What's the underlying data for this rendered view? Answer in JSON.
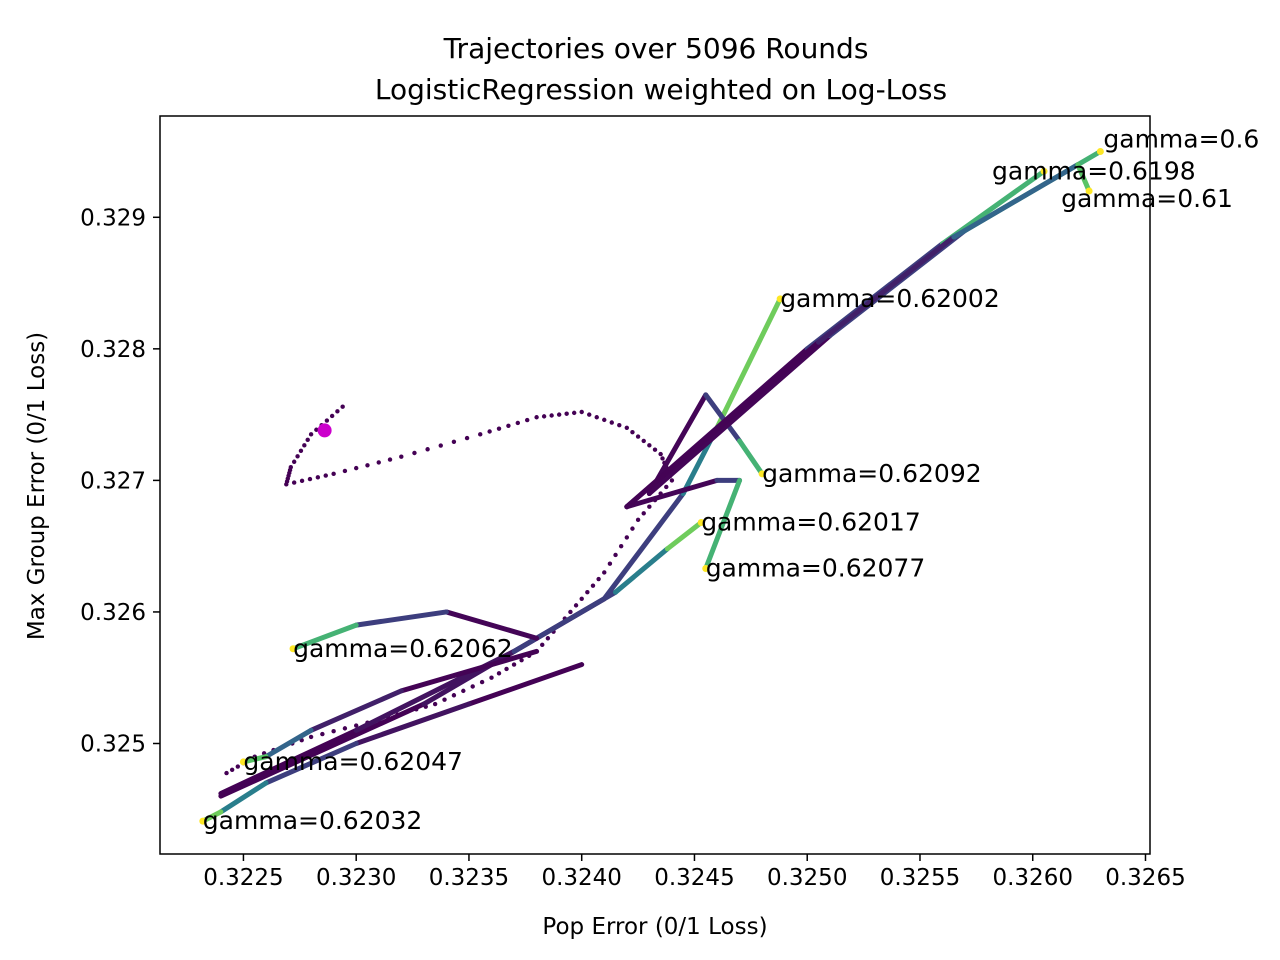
{
  "chart_data": {
    "type": "line",
    "title": "Trajectories over 5096 Rounds",
    "subtitle": "LogisticRegression weighted on Log-Loss",
    "xlabel": "Pop Error (0/1 Loss)",
    "ylabel": "Max Group Error (0/1 Loss)",
    "xlim": [
      0.32213,
      0.32652
    ],
    "ylim": [
      0.32416,
      0.32977
    ],
    "x_ticks": [
      0.3225,
      0.323,
      0.3235,
      0.324,
      0.3245,
      0.325,
      0.3255,
      0.326,
      0.3265
    ],
    "x_tick_labels": [
      "0.3225",
      "0.3230",
      "0.3235",
      "0.3240",
      "0.3245",
      "0.3250",
      "0.3255",
      "0.3260",
      "0.3265"
    ],
    "y_ticks": [
      0.325,
      0.326,
      0.327,
      0.328,
      0.329
    ],
    "y_tick_labels": [
      "0.325",
      "0.326",
      "0.327",
      "0.328",
      "0.329"
    ],
    "colors": {
      "start": "#440154",
      "mid": "#3b528b",
      "late": "#21918c",
      "near_end": "#5ec962",
      "end": "#fde725",
      "highlight_point": "#cc00cc"
    },
    "highlight_point": {
      "x": 0.32286,
      "y": 0.32738
    },
    "dotted_trajectory": {
      "name": "dense path",
      "points": [
        [
          0.32294,
          0.32756
        ],
        [
          0.3228,
          0.32735
        ],
        [
          0.32271,
          0.3271
        ],
        [
          0.32269,
          0.32697
        ],
        [
          0.3229,
          0.32705
        ],
        [
          0.3232,
          0.32718
        ],
        [
          0.32355,
          0.32735
        ],
        [
          0.3238,
          0.32748
        ],
        [
          0.324,
          0.32752
        ],
        [
          0.3242,
          0.3274
        ],
        [
          0.32435,
          0.3272
        ],
        [
          0.3244,
          0.327
        ],
        [
          0.32425,
          0.3267
        ],
        [
          0.3241,
          0.3263
        ],
        [
          0.32395,
          0.326
        ],
        [
          0.3238,
          0.3257
        ],
        [
          0.3236,
          0.3255
        ],
        [
          0.32335,
          0.3253
        ],
        [
          0.3231,
          0.32518
        ],
        [
          0.3228,
          0.32505
        ],
        [
          0.32255,
          0.3249
        ],
        [
          0.3224,
          0.32475
        ]
      ]
    },
    "series": [
      {
        "name": "gamma=0.62002",
        "label": "gamma=0.62002",
        "points": [
          [
            0.3224,
            0.3246
          ],
          [
            0.3233,
            0.3253
          ],
          [
            0.3241,
            0.3261
          ],
          [
            0.32445,
            0.3269
          ],
          [
            0.3246,
            0.3274
          ],
          [
            0.32488,
            0.32838
          ]
        ]
      },
      {
        "name": "gamma=0.62017",
        "label": "gamma=0.62017",
        "points": [
          [
            0.3224,
            0.32462
          ],
          [
            0.323,
            0.3251
          ],
          [
            0.3237,
            0.3257
          ],
          [
            0.32415,
            0.32615
          ],
          [
            0.32438,
            0.32648
          ],
          [
            0.32453,
            0.32668
          ]
        ]
      },
      {
        "name": "gamma=0.62032",
        "label": "gamma=0.62032",
        "points": [
          [
            0.324,
            0.3256
          ],
          [
            0.3235,
            0.3253
          ],
          [
            0.323,
            0.325
          ],
          [
            0.3226,
            0.3247
          ],
          [
            0.3224,
            0.32448
          ],
          [
            0.32232,
            0.32441
          ]
        ]
      },
      {
        "name": "gamma=0.62047",
        "label": "gamma=0.62047",
        "points": [
          [
            0.3238,
            0.3257
          ],
          [
            0.3232,
            0.3254
          ],
          [
            0.3228,
            0.3251
          ],
          [
            0.3226,
            0.3249
          ],
          [
            0.3225,
            0.32486
          ]
        ]
      },
      {
        "name": "gamma=0.62062",
        "label": "gamma=0.62062",
        "points": [
          [
            0.3238,
            0.3258
          ],
          [
            0.3234,
            0.326
          ],
          [
            0.323,
            0.3259
          ],
          [
            0.32272,
            0.32572
          ]
        ]
      },
      {
        "name": "gamma=0.62077",
        "label": "gamma=0.62077",
        "points": [
          [
            0.3242,
            0.3268
          ],
          [
            0.3246,
            0.327
          ],
          [
            0.3247,
            0.327
          ],
          [
            0.32455,
            0.32633
          ]
        ]
      },
      {
        "name": "gamma=0.62092",
        "label": "gamma=0.62092",
        "points": [
          [
            0.3243,
            0.3269
          ],
          [
            0.32455,
            0.32765
          ],
          [
            0.3247,
            0.3273
          ],
          [
            0.3248,
            0.32705
          ]
        ]
      },
      {
        "name": "gamma=0.6198",
        "label": "gamma=0.6198",
        "points": [
          [
            0.3242,
            0.3268
          ],
          [
            0.325,
            0.328
          ],
          [
            0.3256,
            0.3288
          ],
          [
            0.32605,
            0.32935
          ]
        ]
      },
      {
        "name": "gamma=0.6",
        "label": "gamma=0.6",
        "points": [
          [
            0.3243,
            0.3269
          ],
          [
            0.3251,
            0.3281
          ],
          [
            0.3257,
            0.3289
          ],
          [
            0.3263,
            0.3295
          ]
        ]
      },
      {
        "name": "gamma=0.61",
        "label": "gamma=0.61",
        "points": [
          [
            0.3242,
            0.3268
          ],
          [
            0.32505,
            0.32805
          ],
          [
            0.32565,
            0.32885
          ],
          [
            0.3262,
            0.3294
          ],
          [
            0.32625,
            0.3292
          ]
        ]
      }
    ]
  }
}
